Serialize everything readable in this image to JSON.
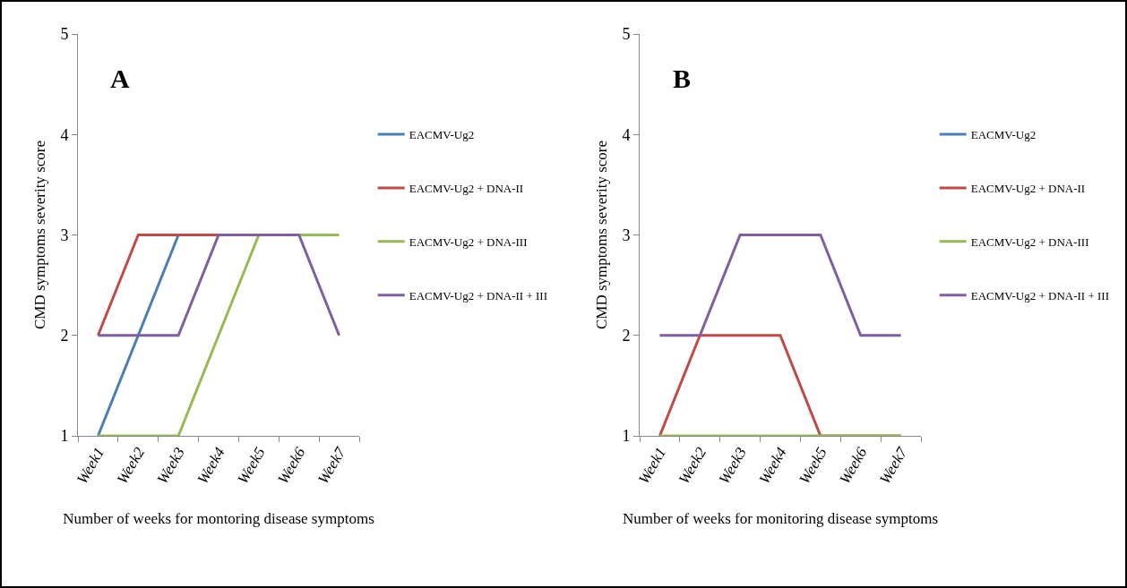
{
  "chart_data": [
    {
      "type": "line",
      "title": "A",
      "xlabel": "Number of weeks for montoring disease symptoms",
      "ylabel": "CMD symptoms severity score",
      "categories": [
        "Week1",
        "Week2",
        "Week3",
        "Week4",
        "Week5",
        "Week6",
        "Week7"
      ],
      "ylim": [
        1,
        5
      ],
      "yticks": [
        1,
        2,
        3,
        4,
        5
      ],
      "grid": false,
      "legend": "right",
      "marker": "none",
      "line_style": "solid",
      "series": [
        {
          "name": "EACMV-Ug2",
          "color": "#4a7ebb",
          "values": [
            1,
            2,
            3,
            null,
            null,
            null,
            null
          ]
        },
        {
          "name": "EACMV-Ug2 + DNA-II",
          "color": "#be4b48",
          "values": [
            2,
            3,
            3,
            3,
            3,
            null,
            null
          ]
        },
        {
          "name": "EACMV-Ug2 + DNA-III",
          "color": "#98b954",
          "values": [
            1,
            1,
            1,
            2,
            3,
            3,
            3
          ]
        },
        {
          "name": "EACMV-Ug2 + DNA-II + III",
          "color": "#7d60a0",
          "values": [
            2,
            2,
            2,
            3,
            3,
            3,
            2
          ]
        }
      ]
    },
    {
      "type": "line",
      "title": "B",
      "xlabel": "Number of weeks for monitoring disease symptoms",
      "ylabel": "CMD symptoms severity score",
      "categories": [
        "Week1",
        "Week2",
        "Week3",
        "Week4",
        "Week5",
        "Week6",
        "Week7"
      ],
      "ylim": [
        1,
        5
      ],
      "yticks": [
        1,
        2,
        3,
        4,
        5
      ],
      "grid": false,
      "legend": "right",
      "marker": "none",
      "line_style": "solid",
      "series": [
        {
          "name": "EACMV-Ug2",
          "color": "#4a7ebb",
          "values": [
            null,
            null,
            null,
            null,
            null,
            null,
            null
          ]
        },
        {
          "name": "EACMV-Ug2 + DNA-II",
          "color": "#be4b48",
          "values": [
            1,
            2,
            2,
            2,
            1,
            1,
            1
          ]
        },
        {
          "name": "EACMV-Ug2 + DNA-III",
          "color": "#98b954",
          "values": [
            1,
            1,
            1,
            1,
            1,
            1,
            1
          ]
        },
        {
          "name": "EACMV-Ug2 + DNA-II + III",
          "color": "#7d60a0",
          "values": [
            2,
            2,
            3,
            3,
            3,
            2,
            2
          ]
        }
      ]
    }
  ]
}
